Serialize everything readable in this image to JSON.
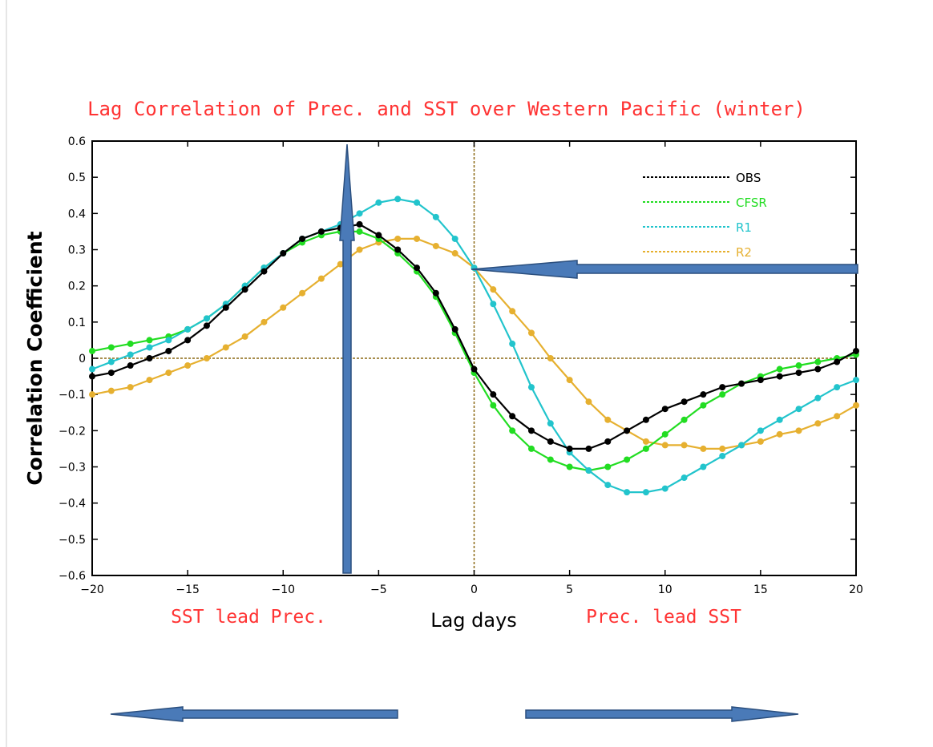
{
  "chart_data": {
    "type": "line",
    "title": "Lag Correlation of Prec. and SST over Western Pacific (winter)",
    "xlabel": "Lag days",
    "ylabel": "Correlation Coefficient",
    "xlim": [
      -20,
      20
    ],
    "ylim": [
      -0.6,
      0.6
    ],
    "xticks": [
      "-20",
      "-15",
      "-10",
      "-5",
      "0",
      "5",
      "10",
      "15",
      "20"
    ],
    "yticks": [
      "-0.6",
      "-0.5",
      "-0.4",
      "-0.3",
      "-0.2",
      "-0.1",
      "0",
      "0.1",
      "0.2",
      "0.3",
      "0.4",
      "0.5",
      "0.6"
    ],
    "grid": false,
    "legend_position": "top-right",
    "x": [
      -20,
      -19,
      -18,
      -17,
      -16,
      -15,
      -14,
      -13,
      -12,
      -11,
      -10,
      -9,
      -8,
      -7,
      -6,
      -5,
      -4,
      -3,
      -2,
      -1,
      0,
      1,
      2,
      3,
      4,
      5,
      6,
      7,
      8,
      9,
      10,
      11,
      12,
      13,
      14,
      15,
      16,
      17,
      18,
      19,
      20
    ],
    "series": [
      {
        "name": "OBS",
        "color": "#000000",
        "values": [
          -0.05,
          -0.04,
          -0.02,
          0.0,
          0.02,
          0.05,
          0.09,
          0.14,
          0.19,
          0.24,
          0.29,
          0.33,
          0.35,
          0.36,
          0.37,
          0.34,
          0.3,
          0.25,
          0.18,
          0.08,
          -0.03,
          -0.1,
          -0.16,
          -0.2,
          -0.23,
          -0.25,
          -0.25,
          -0.23,
          -0.2,
          -0.17,
          -0.14,
          -0.12,
          -0.1,
          -0.08,
          -0.07,
          -0.06,
          -0.05,
          -0.04,
          -0.03,
          -0.01,
          0.02
        ]
      },
      {
        "name": "CFSR",
        "color": "#22dd22",
        "values": [
          0.02,
          0.03,
          0.04,
          0.05,
          0.06,
          0.08,
          0.11,
          0.15,
          0.2,
          0.25,
          0.29,
          0.32,
          0.34,
          0.35,
          0.35,
          0.33,
          0.29,
          0.24,
          0.17,
          0.07,
          -0.04,
          -0.13,
          -0.2,
          -0.25,
          -0.28,
          -0.3,
          -0.31,
          -0.3,
          -0.28,
          -0.25,
          -0.21,
          -0.17,
          -0.13,
          -0.1,
          -0.07,
          -0.05,
          -0.03,
          -0.02,
          -0.01,
          0.0,
          0.01
        ]
      },
      {
        "name": "R1",
        "color": "#22c4cc",
        "values": [
          -0.03,
          -0.01,
          0.01,
          0.03,
          0.05,
          0.08,
          0.11,
          0.15,
          0.2,
          0.25,
          0.29,
          0.33,
          0.35,
          0.37,
          0.4,
          0.43,
          0.44,
          0.43,
          0.39,
          0.33,
          0.25,
          0.15,
          0.04,
          -0.08,
          -0.18,
          -0.26,
          -0.31,
          -0.35,
          -0.37,
          -0.37,
          -0.36,
          -0.33,
          -0.3,
          -0.27,
          -0.24,
          -0.2,
          -0.17,
          -0.14,
          -0.11,
          -0.08,
          -0.06
        ]
      },
      {
        "name": "R2",
        "color": "#e6b030",
        "values": [
          -0.1,
          -0.09,
          -0.08,
          -0.06,
          -0.04,
          -0.02,
          0.0,
          0.03,
          0.06,
          0.1,
          0.14,
          0.18,
          0.22,
          0.26,
          0.3,
          0.32,
          0.33,
          0.33,
          0.31,
          0.29,
          0.25,
          0.19,
          0.13,
          0.07,
          0.0,
          -0.06,
          -0.12,
          -0.17,
          -0.2,
          -0.23,
          -0.24,
          -0.24,
          -0.25,
          -0.25,
          -0.24,
          -0.23,
          -0.21,
          -0.2,
          -0.18,
          -0.16,
          -0.13
        ]
      }
    ],
    "annotations": {
      "left": "SST lead Prec.",
      "right": "Prec. lead SST"
    }
  },
  "colors": {
    "title": "#ff3333",
    "annotation": "#ff3333",
    "zero_line": "#8b6914",
    "arrow_fill": "#4a7ab8",
    "arrow_stroke": "#2b4f7e"
  }
}
